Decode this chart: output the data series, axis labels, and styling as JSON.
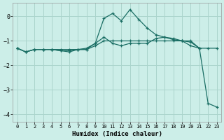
{
  "xlabel": "Humidex (Indice chaleur)",
  "bg_color": "#cceee8",
  "grid_color": "#aad4cc",
  "line_color": "#1a6e64",
  "xlim": [
    -0.5,
    23.5
  ],
  "ylim": [
    -4.3,
    0.55
  ],
  "yticks": [
    0,
    -1,
    -2,
    -3,
    -4
  ],
  "xticks": [
    0,
    1,
    2,
    3,
    4,
    5,
    6,
    7,
    8,
    9,
    10,
    11,
    12,
    13,
    14,
    15,
    16,
    17,
    18,
    19,
    20,
    21,
    22,
    23
  ],
  "line1_x": [
    0,
    1,
    2,
    3,
    4,
    5,
    6,
    7,
    8,
    9,
    10,
    11,
    12,
    13,
    14,
    15,
    16,
    17,
    18,
    19,
    20,
    21
  ],
  "line1_y": [
    -1.3,
    -1.45,
    -1.35,
    -1.35,
    -1.35,
    -1.35,
    -1.35,
    -1.35,
    -1.35,
    -1.2,
    -1.0,
    -1.0,
    -1.0,
    -1.0,
    -1.0,
    -1.0,
    -1.0,
    -1.0,
    -1.0,
    -1.0,
    -1.0,
    -1.3
  ],
  "line2_x": [
    0,
    1,
    2,
    3,
    4,
    5,
    6,
    7,
    8,
    9,
    10,
    11,
    12,
    13,
    14,
    15,
    16,
    17,
    18,
    19,
    20,
    21,
    22,
    23
  ],
  "line2_y": [
    -1.3,
    -1.45,
    -1.35,
    -1.35,
    -1.35,
    -1.4,
    -1.4,
    -1.35,
    -1.3,
    -1.1,
    -0.85,
    -1.1,
    -1.2,
    -1.1,
    -1.1,
    -1.1,
    -0.9,
    -0.85,
    -0.95,
    -1.0,
    -1.05,
    -1.3,
    -1.3,
    -1.3
  ],
  "line3_x": [
    0,
    1,
    2,
    3,
    4,
    5,
    6,
    7,
    8,
    9,
    10,
    11,
    12,
    13,
    14,
    15,
    16,
    17,
    18,
    19,
    20,
    21,
    22,
    23
  ],
  "line3_y": [
    -1.3,
    -1.45,
    -1.35,
    -1.35,
    -1.35,
    -1.4,
    -1.45,
    -1.35,
    -1.35,
    -1.1,
    -0.08,
    0.12,
    -0.18,
    0.28,
    -0.12,
    -0.48,
    -0.75,
    -0.85,
    -0.9,
    -1.0,
    -1.2,
    -1.3,
    -3.55,
    -3.7
  ]
}
